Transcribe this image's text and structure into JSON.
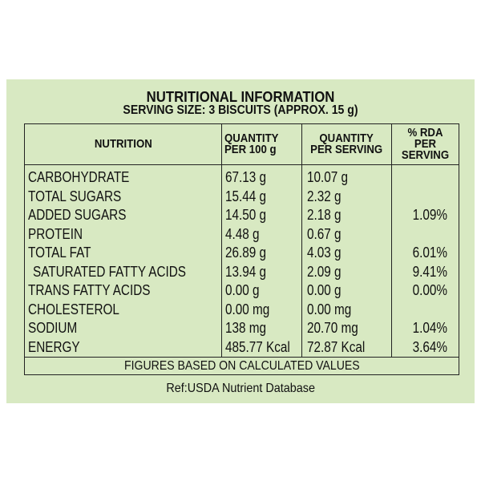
{
  "title": "NUTRITIONAL INFORMATION",
  "subtitle": "SERVING SIZE: 3 BISCUITS (APPROX. 15 g)",
  "columns": {
    "nutrition": "NUTRITION",
    "per100_line1": "QUANTITY",
    "per100_line2": "PER 100 g",
    "serving_line1": "QUANTITY",
    "serving_line2": "PER SERVING",
    "rda_line1": "% RDA PER",
    "rda_line2": "SERVING"
  },
  "rows": [
    {
      "name": "CARBOHYDRATE",
      "per100": "67.13 g",
      "serving": "10.07 g",
      "rda": ""
    },
    {
      "name": "TOTAL SUGARS",
      "per100": "15.44 g",
      "serving": "2.32 g",
      "rda": ""
    },
    {
      "name": "ADDED SUGARS",
      "per100": "14.50 g",
      "serving": "2.18 g",
      "rda": "1.09%"
    },
    {
      "name": "PROTEIN",
      "per100": "4.48 g",
      "serving": "0.67 g",
      "rda": ""
    },
    {
      "name": "TOTAL FAT",
      "per100": "26.89 g",
      "serving": "4.03 g",
      "rda": "6.01%"
    },
    {
      "name": "SATURATED FATTY ACIDS",
      "per100": "13.94 g",
      "serving": "2.09 g",
      "rda": "9.41%"
    },
    {
      "name": "TRANS FATTY ACIDS",
      "per100": "0.00 g",
      "serving": "0.00 g",
      "rda": "0.00%"
    },
    {
      "name": "CHOLESTEROL",
      "per100": "0.00 mg",
      "serving": "0.00 mg",
      "rda": ""
    },
    {
      "name": "SODIUM",
      "per100": "138 mg",
      "serving": "20.70 mg",
      "rda": "1.04%"
    },
    {
      "name": "ENERGY",
      "per100": "485.77 Kcal",
      "serving": "72.87 Kcal",
      "rda": "3.64%"
    }
  ],
  "footnote": "FIGURES BASED ON CALCULATED VALUES",
  "reference": "Ref:USDA Nutrient Database",
  "colors": {
    "panel_background": "#d8e9c2",
    "text": "#111111"
  }
}
